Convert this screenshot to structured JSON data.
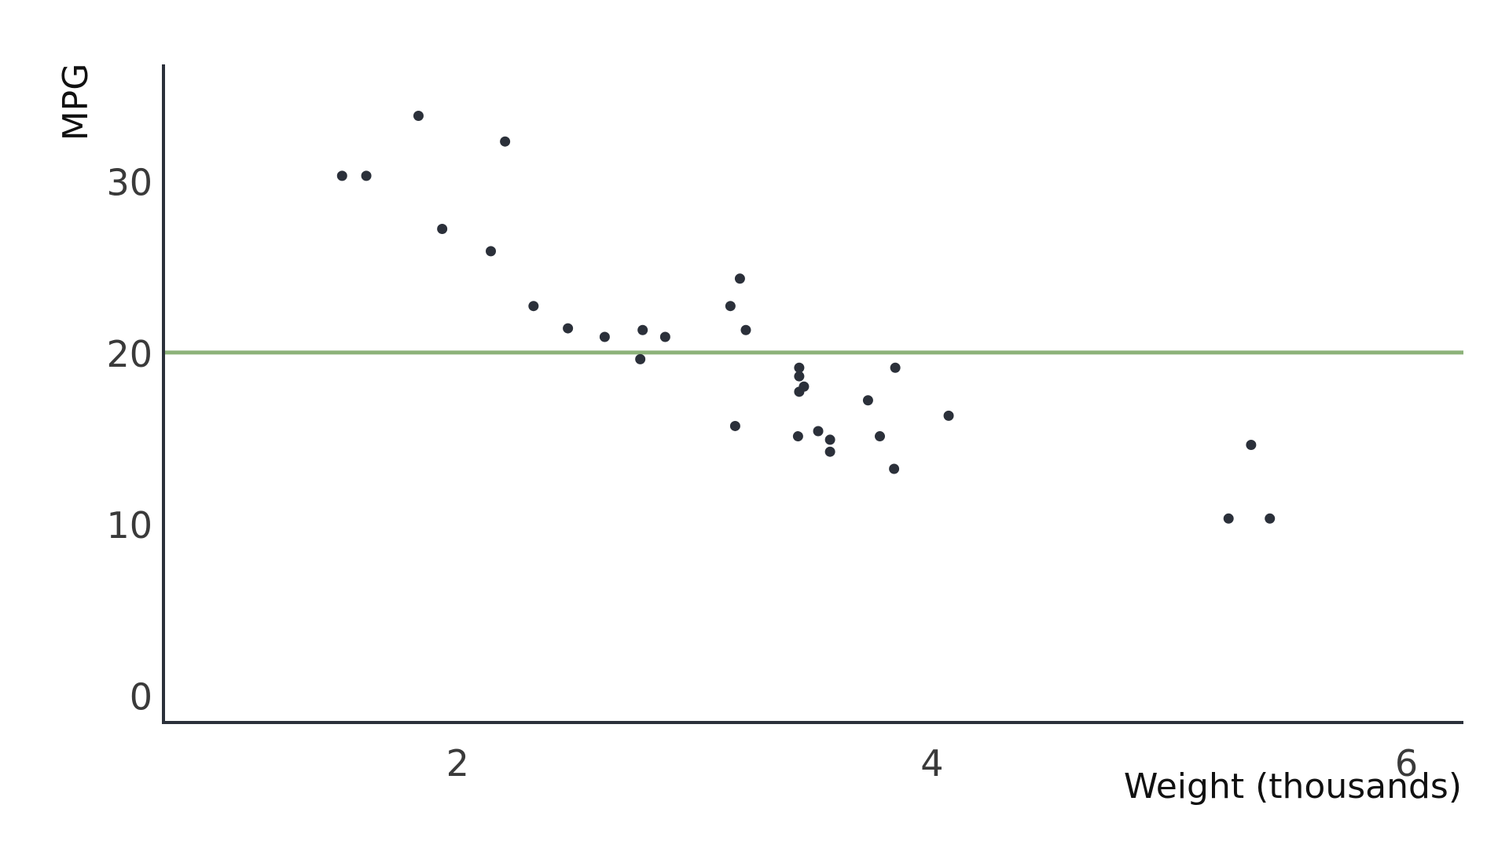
{
  "chart_data": {
    "type": "scatter",
    "title": "",
    "xlabel": "Weight (thousands)",
    "ylabel": "MPG",
    "xlim": [
      0.76,
      6.24
    ],
    "ylim": [
      -1.5,
      36.9
    ],
    "x_ticks": [
      2,
      4,
      6
    ],
    "y_ticks": [
      0,
      10,
      20,
      30
    ],
    "grid": false,
    "legend": "none",
    "points": [
      {
        "x": 1.513,
        "y": 30.4
      },
      {
        "x": 1.615,
        "y": 30.4
      },
      {
        "x": 1.835,
        "y": 33.9
      },
      {
        "x": 1.935,
        "y": 27.3
      },
      {
        "x": 2.14,
        "y": 26.0
      },
      {
        "x": 2.2,
        "y": 32.4
      },
      {
        "x": 2.32,
        "y": 22.8
      },
      {
        "x": 2.465,
        "y": 21.5
      },
      {
        "x": 2.62,
        "y": 21.0
      },
      {
        "x": 2.77,
        "y": 19.7
      },
      {
        "x": 2.78,
        "y": 21.4
      },
      {
        "x": 2.875,
        "y": 21.0
      },
      {
        "x": 3.15,
        "y": 22.8
      },
      {
        "x": 3.17,
        "y": 15.8
      },
      {
        "x": 3.19,
        "y": 24.4
      },
      {
        "x": 3.215,
        "y": 21.4
      },
      {
        "x": 3.435,
        "y": 15.2
      },
      {
        "x": 3.44,
        "y": 17.8
      },
      {
        "x": 3.44,
        "y": 18.7
      },
      {
        "x": 3.44,
        "y": 19.2
      },
      {
        "x": 3.46,
        "y": 18.1
      },
      {
        "x": 3.52,
        "y": 15.5
      },
      {
        "x": 3.57,
        "y": 15.0
      },
      {
        "x": 3.57,
        "y": 14.3
      },
      {
        "x": 3.73,
        "y": 17.3
      },
      {
        "x": 3.78,
        "y": 15.2
      },
      {
        "x": 3.84,
        "y": 13.3
      },
      {
        "x": 3.845,
        "y": 19.2
      },
      {
        "x": 4.07,
        "y": 16.4
      },
      {
        "x": 5.25,
        "y": 10.4
      },
      {
        "x": 5.345,
        "y": 14.7
      },
      {
        "x": 5.424,
        "y": 10.4
      }
    ],
    "reference_line": {
      "orientation": "horizontal",
      "y": 20.09
    },
    "colors": {
      "points": "#2b303a",
      "reference_line": "#8db27a",
      "axis": "#2b303a"
    }
  }
}
